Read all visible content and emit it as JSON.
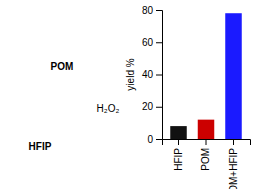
{
  "chart_data": {
    "type": "bar",
    "categories": [
      "HFIP",
      "POM",
      "POM+HFIP"
    ],
    "values": [
      8,
      12,
      78
    ],
    "colors": [
      "#111111",
      "#cc0000",
      "#1a1aff"
    ],
    "ylabel": "yield %",
    "ylim": [
      0,
      80
    ],
    "yticks": [
      0,
      20,
      40,
      60,
      80
    ],
    "annotations": [
      "POM",
      "HFIP",
      "H₂O₂"
    ],
    "grid": false
  }
}
